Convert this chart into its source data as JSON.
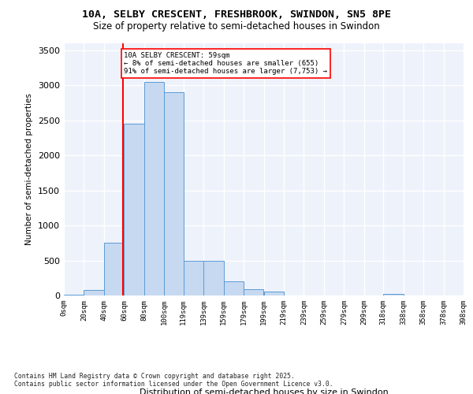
{
  "title_line1": "10A, SELBY CRESCENT, FRESHBROOK, SWINDON, SN5 8PE",
  "title_line2": "Size of property relative to semi-detached houses in Swindon",
  "xlabel": "Distribution of semi-detached houses by size in Swindon",
  "ylabel": "Number of semi-detached properties",
  "footnote": "Contains HM Land Registry data © Crown copyright and database right 2025.\nContains public sector information licensed under the Open Government Licence v3.0.",
  "bar_color": "#c6d9f0",
  "bar_edge_color": "#5b9bd5",
  "background_color": "#eef2fb",
  "grid_color": "#ffffff",
  "red_line_x": 59,
  "annotation_title": "10A SELBY CRESCENT: 59sqm",
  "annotation_line1": "← 8% of semi-detached houses are smaller (655)",
  "annotation_line2": "91% of semi-detached houses are larger (7,753) →",
  "bins": [
    0,
    20,
    40,
    60,
    80,
    100,
    119,
    139,
    159,
    179,
    199,
    219,
    239,
    259,
    279,
    299,
    318,
    338,
    358,
    378,
    398
  ],
  "bar_heights": [
    10,
    80,
    750,
    2450,
    3050,
    2900,
    500,
    500,
    200,
    90,
    60,
    0,
    0,
    0,
    0,
    0,
    20,
    0,
    0,
    0
  ],
  "ylim": [
    0,
    3600
  ],
  "yticks": [
    0,
    500,
    1000,
    1500,
    2000,
    2500,
    3000,
    3500
  ]
}
